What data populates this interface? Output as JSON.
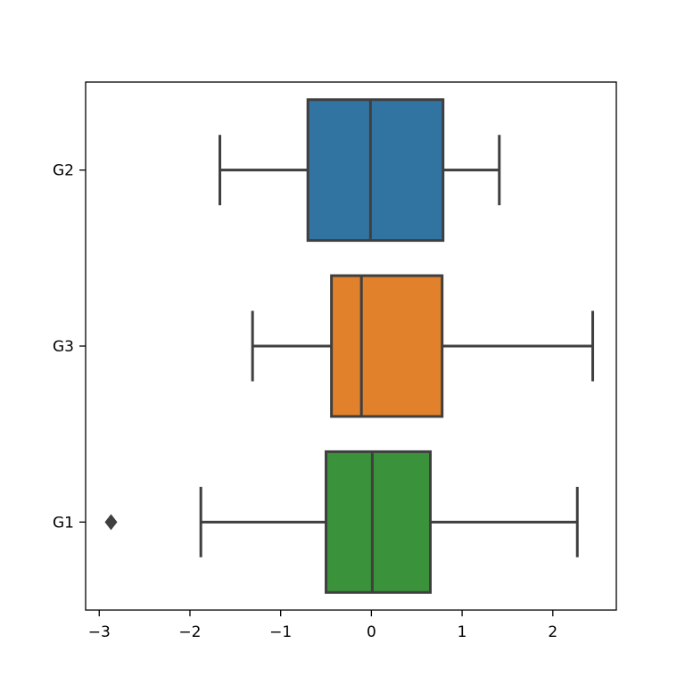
{
  "chart_data": {
    "type": "boxplot",
    "orientation": "horizontal",
    "categories": [
      "G2",
      "G3",
      "G1"
    ],
    "xlim": [
      -3.15,
      2.7
    ],
    "xticks": [
      -3,
      -2,
      -1,
      0,
      1,
      2
    ],
    "xtick_labels": [
      "−3",
      "−2",
      "−1",
      "0",
      "1",
      "2"
    ],
    "grid": false,
    "boxes": [
      {
        "category": "G2",
        "whisker_low": -1.67,
        "q1": -0.7,
        "median": -0.01,
        "q3": 0.79,
        "whisker_high": 1.41,
        "outliers": [],
        "color": "#3274a1"
      },
      {
        "category": "G3",
        "whisker_low": -1.31,
        "q1": -0.44,
        "median": -0.11,
        "q3": 0.78,
        "whisker_high": 2.44,
        "outliers": [],
        "color": "#e1812c"
      },
      {
        "category": "G1",
        "whisker_low": -1.88,
        "q1": -0.5,
        "median": 0.01,
        "q3": 0.65,
        "whisker_high": 2.27,
        "outliers": [
          -2.87
        ],
        "color": "#3a923a"
      }
    ],
    "line_color": "#3f3f3f"
  }
}
